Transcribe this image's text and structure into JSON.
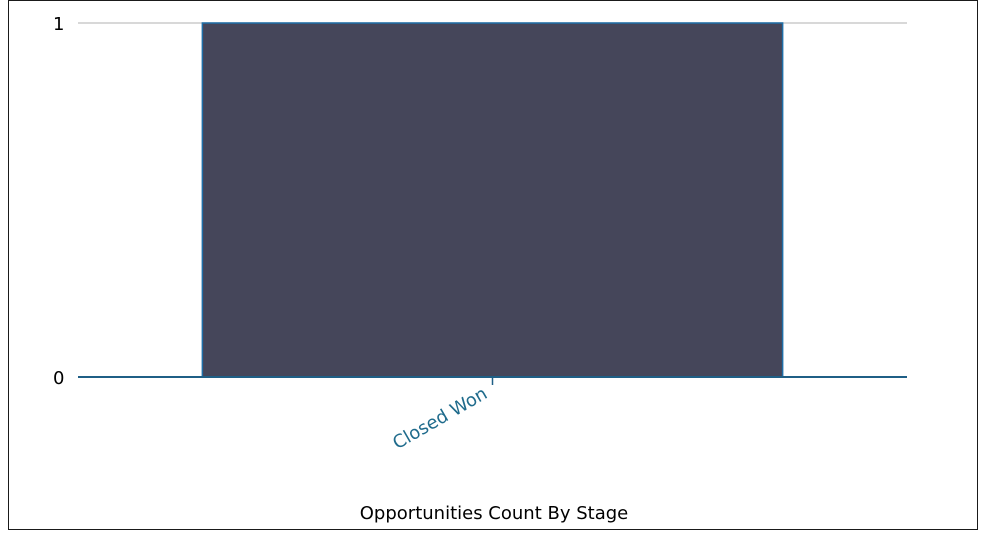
{
  "chart_data": {
    "type": "bar",
    "title": "Opportunities Count By Stage",
    "categories": [
      "Closed Won"
    ],
    "values": [
      1
    ],
    "ylim": [
      0,
      1
    ],
    "yticks": [
      "0",
      "1"
    ],
    "xlabel": "",
    "ylabel": "",
    "grid": true,
    "legend": "none",
    "colors": {
      "bar_fill": "#45465a",
      "bar_stroke": "#1f6fa8",
      "axis_line": "#1f5f86",
      "grid_line": "#cccccc",
      "category_label": "#1f6b8c"
    }
  }
}
